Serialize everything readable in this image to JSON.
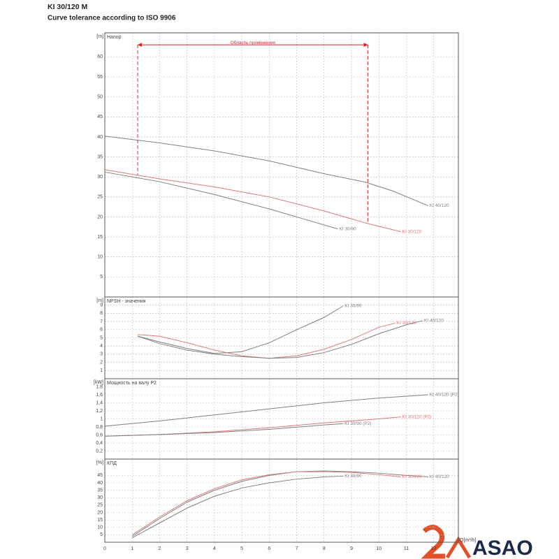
{
  "header": {
    "title": "KI 30/120 M",
    "subtitle": "Curve tolerance according to ISO 9906"
  },
  "logo": {
    "text": "ASAO"
  },
  "chart_data": [
    {
      "type": "line",
      "title": "Напор",
      "ylabel": "[m]",
      "xlim": [
        0,
        12.9
      ],
      "xticks": [
        0,
        1,
        2,
        3,
        4,
        5,
        6,
        7,
        8,
        9,
        10,
        11,
        12
      ],
      "ylim": [
        0,
        66
      ],
      "yticks": [
        5,
        10,
        15,
        20,
        25,
        30,
        35,
        40,
        45,
        50,
        55,
        60
      ],
      "grid": true,
      "annotations": [
        {
          "text": "Область применения",
          "x": [
            1.2,
            9.6
          ],
          "y": 63,
          "color": "#d9262c"
        }
      ],
      "series": [
        {
          "name": "KI 40/120",
          "color": "#7f7f7f",
          "x": [
            0,
            2,
            4,
            6,
            8,
            9.5,
            10.5,
            11.8
          ],
          "values": [
            40.2,
            38.5,
            36.5,
            34,
            30.8,
            28.7,
            26.5,
            22.8
          ]
        },
        {
          "name": "KI 30/120",
          "color": "#e0787a",
          "x": [
            0,
            2,
            4,
            6,
            8,
            9.5,
            10.8
          ],
          "values": [
            31.8,
            29.5,
            27.5,
            25,
            21.5,
            18.5,
            16.3
          ]
        },
        {
          "name": "KI 30/90",
          "color": "#7f7f7f",
          "x": [
            0,
            2,
            4,
            6,
            7.5,
            8.5
          ],
          "values": [
            31.2,
            28.8,
            25.6,
            22,
            19,
            17
          ]
        }
      ]
    },
    {
      "type": "line",
      "title": "NPSH - значения",
      "ylabel": "[m]",
      "xlim": [
        0,
        12.9
      ],
      "xticks": [
        0,
        1,
        2,
        3,
        4,
        5,
        6,
        7,
        8,
        9,
        10,
        11,
        12
      ],
      "ylim": [
        0,
        10
      ],
      "yticks": [
        1,
        2,
        3,
        4,
        5,
        6,
        7,
        8,
        9
      ],
      "grid": true,
      "series": [
        {
          "name": "KI 30/90",
          "color": "#7f7f7f",
          "x": [
            1.2,
            2,
            3,
            4,
            5,
            6,
            7,
            8,
            8.7
          ],
          "values": [
            5.2,
            4.5,
            3.7,
            3.1,
            3.3,
            4.4,
            6,
            7.5,
            8.9
          ]
        },
        {
          "name": "KI 30/120",
          "color": "#e0787a",
          "x": [
            1.2,
            2,
            3,
            4,
            5,
            6,
            7,
            8,
            9,
            10,
            10.6
          ],
          "values": [
            5.4,
            5.2,
            4.4,
            3.5,
            2.8,
            2.5,
            2.8,
            3.6,
            4.8,
            6.3,
            6.8
          ]
        },
        {
          "name": "KI 40/120",
          "color": "#7f7f7f",
          "x": [
            1.2,
            2,
            3,
            4,
            5,
            6,
            7,
            8,
            9,
            10,
            11,
            11.6
          ],
          "values": [
            5.2,
            4.3,
            3.5,
            3,
            2.7,
            2.5,
            2.6,
            3.2,
            4.2,
            5.5,
            6.6,
            7.1
          ]
        }
      ]
    },
    {
      "type": "line",
      "title": "Мощность на валу P2",
      "ylabel": "[kW]",
      "xlim": [
        0,
        12.9
      ],
      "xticks": [
        0,
        1,
        2,
        3,
        4,
        5,
        6,
        7,
        8,
        9,
        10,
        11,
        12
      ],
      "ylim": [
        0,
        2
      ],
      "yticks": [
        {
          "value": 0.2,
          "label": "0,2"
        },
        {
          "value": 0.4,
          "label": "0,4"
        },
        {
          "value": 0.6,
          "label": "0,6"
        },
        {
          "value": 0.8,
          "label": "0,8"
        },
        1,
        {
          "value": 1.2,
          "label": "1,2"
        },
        {
          "value": 1.4,
          "label": "1,4"
        },
        {
          "value": 1.6,
          "label": "1,6"
        },
        {
          "value": 1.8,
          "label": "1,8"
        }
      ],
      "grid": true,
      "series": [
        {
          "name": "KI 40/120 (P2)",
          "color": "#7f7f7f",
          "x": [
            0,
            2,
            4,
            6,
            8,
            10,
            11.8
          ],
          "values": [
            0.82,
            0.95,
            1.1,
            1.25,
            1.4,
            1.52,
            1.6
          ]
        },
        {
          "name": "KI 30/120 (P2)",
          "color": "#e0787a",
          "x": [
            0,
            2,
            4,
            6,
            8,
            10,
            10.8
          ],
          "values": [
            0.57,
            0.61,
            0.68,
            0.78,
            0.9,
            1,
            1.05
          ]
        },
        {
          "name": "KI 30/90 (P2)",
          "color": "#7f7f7f",
          "x": [
            0,
            2,
            4,
            6,
            8,
            8.7
          ],
          "values": [
            0.57,
            0.61,
            0.66,
            0.74,
            0.85,
            0.88
          ]
        }
      ]
    },
    {
      "type": "line",
      "title": "КПД",
      "ylabel": "[%]",
      "xlabel": "Q[m³/h]",
      "xlim": [
        0,
        12.9
      ],
      "xticks": [
        0,
        1,
        2,
        3,
        4,
        5,
        6,
        7,
        8,
        9,
        10,
        11,
        12
      ],
      "ylim": [
        0,
        56
      ],
      "yticks": [
        5,
        10,
        15,
        20,
        25,
        30,
        35,
        40,
        45
      ],
      "grid": true,
      "series": [
        {
          "name": "KI 40/120",
          "color": "#7f7f7f",
          "x": [
            1,
            2,
            3,
            4,
            5,
            6,
            7,
            8,
            9,
            10,
            11,
            11.8
          ],
          "values": [
            4,
            16,
            27,
            35,
            41,
            45,
            47.5,
            48,
            47.5,
            46.5,
            45,
            44
          ]
        },
        {
          "name": "KI 30/120",
          "color": "#e0787a",
          "x": [
            1,
            2,
            3,
            4,
            5,
            6,
            7,
            8,
            9,
            10,
            10.8
          ],
          "values": [
            5,
            17,
            28,
            36,
            42,
            45.5,
            47.5,
            47.5,
            47,
            45.5,
            44
          ]
        },
        {
          "name": "KI 30/90",
          "color": "#7f7f7f",
          "x": [
            1,
            2,
            3,
            4,
            5,
            6,
            7,
            8,
            8.7
          ],
          "values": [
            3,
            13,
            23,
            31,
            36.5,
            40,
            42.5,
            44,
            44.5
          ]
        }
      ]
    }
  ]
}
